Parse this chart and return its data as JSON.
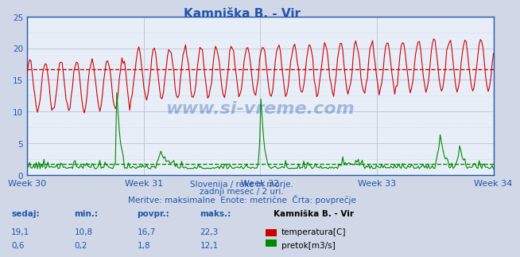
{
  "title": "Kamniška B. - Vir",
  "bg_color": "#d0d8e8",
  "plot_bg_color": "#e8eef8",
  "grid_color": "#c0c8d8",
  "temp_color": "#cc0000",
  "flow_color": "#008800",
  "avg_temp_color": "#cc0000",
  "avg_flow_color": "#008800",
  "avg_temp": 16.7,
  "avg_flow": 1.8,
  "ylim": [
    0,
    25
  ],
  "yticks": [
    0,
    5,
    10,
    15,
    20,
    25
  ],
  "week_labels": [
    "Week 30",
    "Week 31",
    "Week 32",
    "Week 33",
    "Week 34"
  ],
  "subtitle1": "Slovenija / reke in morje.",
  "subtitle2": "zadnji mesec / 2 uri.",
  "subtitle3": "Meritve: maksimalne  Enote: metrične  Črta: povprečje",
  "stat_header": [
    "sedaj:",
    "min.:",
    "povpr.:",
    "maks.:"
  ],
  "temp_stats": [
    "19,1",
    "10,8",
    "16,7",
    "22,3"
  ],
  "flow_stats": [
    "0,6",
    "0,2",
    "1,8",
    "12,1"
  ],
  "temp_label": "temperatura[C]",
  "flow_label": "pretok[m3/s]",
  "station_label": "Kamniška B. - Vir",
  "n_points": 360,
  "watermark": "www.si-vreme.com"
}
